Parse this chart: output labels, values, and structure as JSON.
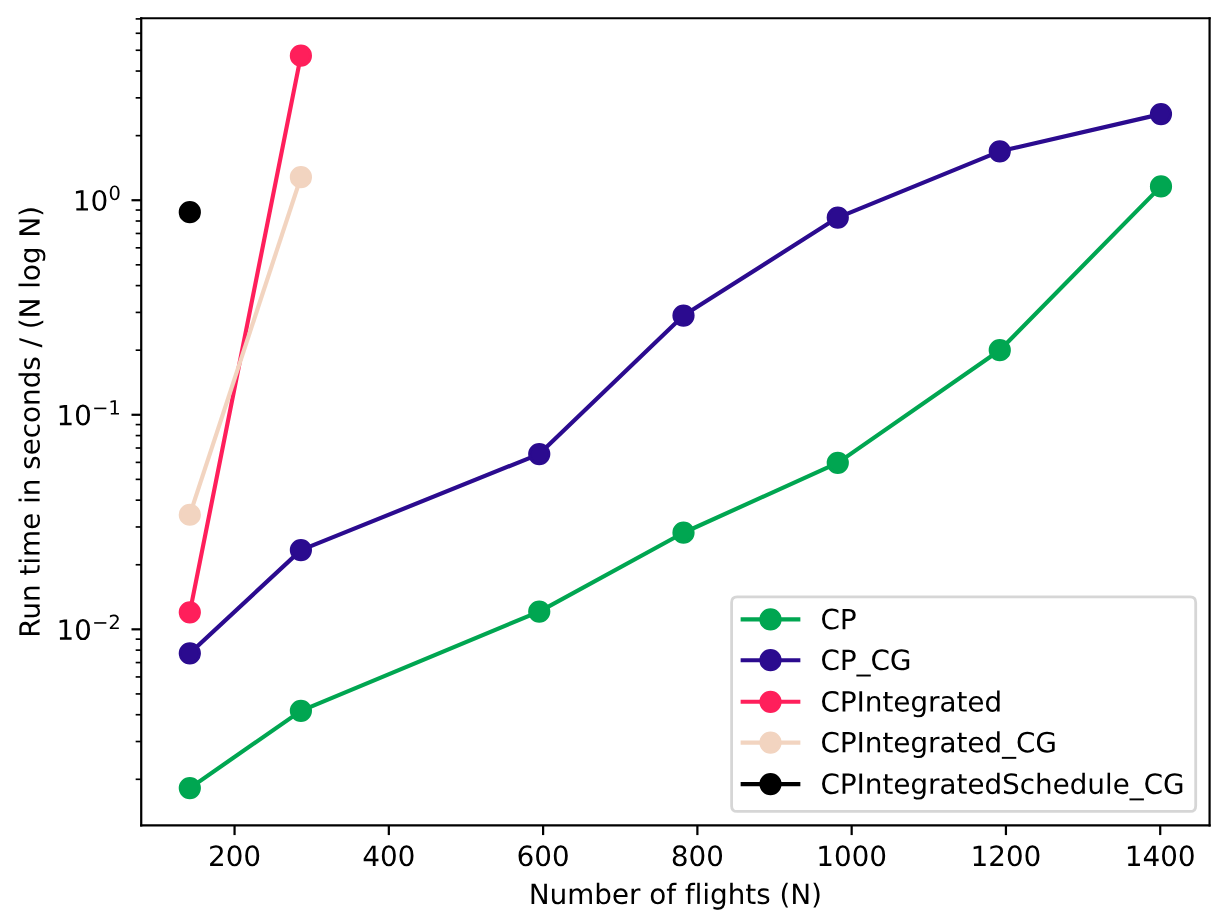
{
  "chart_data": {
    "type": "line",
    "xlabel": "Number of flights (N)",
    "ylabel": "Run time in seconds / (N log N)",
    "log": "y",
    "marker": "circle",
    "line_style": "solid",
    "legend": "bottom right",
    "grid": false,
    "xlim": [
      79,
      1464
    ],
    "xticks": [
      200,
      400,
      600,
      800,
      1000,
      1200,
      1400
    ],
    "ylim": [
      0.00122,
      7.05
    ],
    "yticks": [
      {
        "value": 0.01,
        "label": "10$^{−2}$"
      },
      {
        "value": 0.1,
        "label": "10$^{−1}$"
      },
      {
        "value": 1,
        "label": "10$^{0}$"
      }
    ],
    "series": [
      {
        "name": "CP",
        "color": "#00a651",
        "x": [
          142,
          286,
          595,
          782,
          982,
          1192,
          1401
        ],
        "values": [
          0.00182,
          0.00417,
          0.0121,
          0.0282,
          0.0597,
          0.2,
          1.16
        ]
      },
      {
        "name": "CP_CG",
        "color": "#2b0b8f",
        "x": [
          142,
          286,
          595,
          782,
          982,
          1192,
          1401
        ],
        "values": [
          0.00773,
          0.0234,
          0.0656,
          0.29,
          0.83,
          1.69,
          2.52
        ]
      },
      {
        "name": "CPIntegrated",
        "color": "#ff1f5b",
        "x": [
          142,
          286
        ],
        "values": [
          0.012,
          4.72
        ]
      },
      {
        "name": "CPIntegrated_CG",
        "color": "#f2d4c0",
        "x": [
          142,
          286
        ],
        "values": [
          0.0342,
          1.28
        ]
      },
      {
        "name": "CPIntegratedSchedule_CG",
        "color": "#000000",
        "x": [
          142
        ],
        "values": [
          0.88
        ]
      }
    ]
  }
}
